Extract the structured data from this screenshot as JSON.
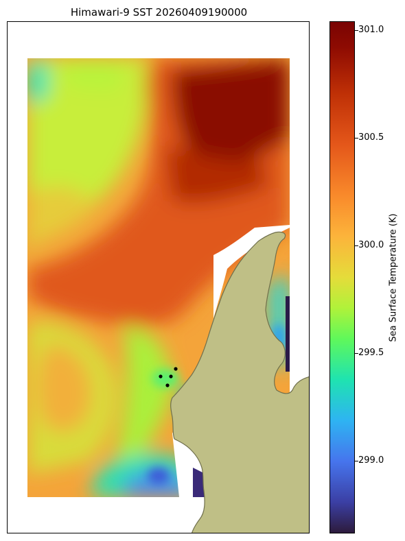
{
  "title": "Himawari-9 SST 20260409190000",
  "colorbar": {
    "label": "Sea Surface Temperature (K)",
    "ticks": [
      "301.0",
      "300.5",
      "300.0",
      "299.5",
      "299.0"
    ],
    "range": [
      298.63,
      301.09
    ]
  },
  "map": {
    "land_color": "#bfbf86",
    "coast_color": "#6f6f4c",
    "points_color": "#000000",
    "point_count": 4
  }
}
